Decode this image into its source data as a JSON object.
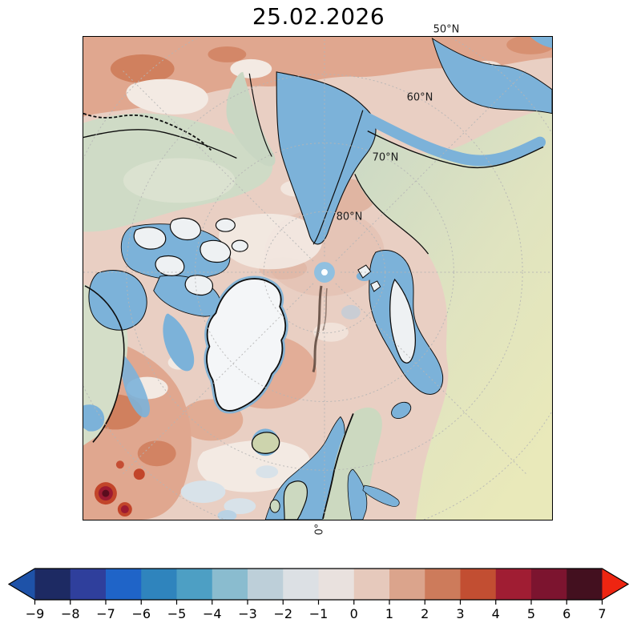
{
  "title": "25.02.2026",
  "map": {
    "graticule_labels": [
      {
        "text": "50°N"
      },
      {
        "text": "60°N"
      },
      {
        "text": "70°N"
      },
      {
        "text": "80°N"
      }
    ],
    "meridian_label": "0°"
  },
  "colorbar": {
    "orientation": "horizontal",
    "tick_values": [
      -9,
      -8,
      -7,
      -6,
      -5,
      -4,
      -3,
      -2,
      -1,
      0,
      1,
      2,
      3,
      4,
      5,
      6,
      7
    ],
    "tick_labels": [
      "−9",
      "−8",
      "−7",
      "−6",
      "−5",
      "−4",
      "−3",
      "−2",
      "−1",
      "0",
      "1",
      "2",
      "3",
      "4",
      "5",
      "6",
      "7"
    ],
    "segment_colors": [
      "#1d2a63",
      "#2f3f9c",
      "#1f64c8",
      "#2f84bd",
      "#4d9fc4",
      "#8abccf",
      "#bdcfd9",
      "#dce0e4",
      "#e9e1de",
      "#e6c9bc",
      "#dba48c",
      "#cd7b5b",
      "#c24e32",
      "#a01d33",
      "#7c142f",
      "#43101f"
    ],
    "under_arrow_color": "#1e52a8",
    "over_arrow_color": "#ee2511",
    "outline_color": "#000000"
  },
  "palette": {
    "anomalyBase": "#e9cfc3",
    "salmonMid": "#e0a78f",
    "salmonDeep": "#d0805e",
    "cream": "#f3eae3",
    "pinkDark": "#ddae9a",
    "redHot": "#c2452a",
    "redDark": "#9c1b31",
    "redCore": "#5a0d1d",
    "paleBlueGray": "#d8e2e9",
    "lightBlue": "#b9d2e4",
    "grayPatch": "#c9cdd4",
    "ocean": "#7cb2d9",
    "poleBlue": "#90c0e0",
    "sageTop": "#c9d8c6",
    "sageMid": "#dfe3c0",
    "landYellow": "#e9e9ba",
    "alaska": "#cfdbc6",
    "canada": "#d4dec8",
    "chukotka": "#c9d7c3",
    "scandinavia": "#ccd9c0",
    "icelandLand": "#cdd4ad",
    "iceWhite": "#f4f6f8",
    "islandWhite": "#eef1f3",
    "coast": "#0d0d0d",
    "grid": "#b5b5b5",
    "streak": "#5a453b"
  }
}
